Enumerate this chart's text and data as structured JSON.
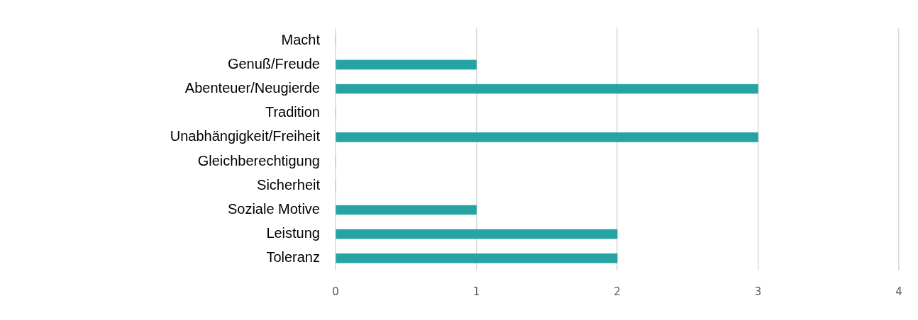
{
  "chart_data": {
    "type": "bar",
    "orientation": "horizontal",
    "categories": [
      "Macht",
      "Genuß/Freude",
      "Abenteuer/Neugierde",
      "Tradition",
      "Unabhängigkeit/Freiheit",
      "Gleichberechtigung",
      "Sicherheit",
      "Soziale Motive",
      "Leistung",
      "Toleranz"
    ],
    "values": [
      0,
      1,
      3,
      0,
      3,
      0,
      0,
      1,
      2,
      2
    ],
    "color": "#26a3a3",
    "xlim": [
      0,
      4
    ],
    "xticks": [
      0,
      1,
      2,
      3,
      4
    ],
    "grid": "x",
    "legend": false
  }
}
